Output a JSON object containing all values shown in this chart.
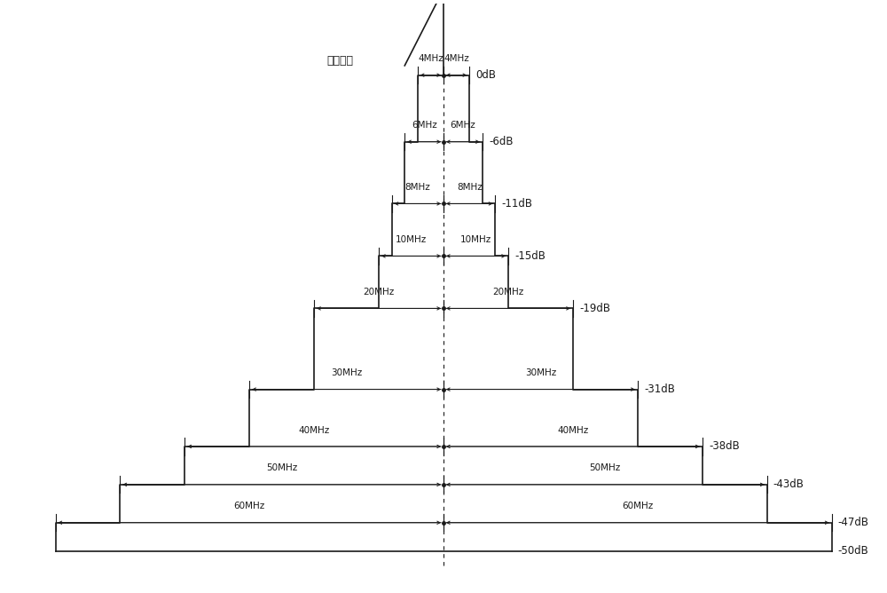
{
  "steps": [
    {
      "bw": 4,
      "db": 0,
      "db_label": "0dB"
    },
    {
      "bw": 6,
      "db": -6,
      "db_label": "-6dB"
    },
    {
      "bw": 8,
      "db": -11,
      "db_label": "-11dB"
    },
    {
      "bw": 10,
      "db": -15,
      "db_label": "-15dB"
    },
    {
      "bw": 20,
      "db": -19,
      "db_label": "-19dB"
    },
    {
      "bw": 30,
      "db": -31,
      "db_label": "-31dB"
    },
    {
      "bw": 40,
      "db": -38,
      "db_label": "-38dB"
    },
    {
      "bw": 50,
      "db": -43,
      "db_label": "-43dB"
    },
    {
      "bw": 60,
      "db": -47,
      "db_label": "-47dB"
    }
  ],
  "bottom_db_label": "-50dB",
  "y_positions": [
    10.0,
    8.6,
    7.3,
    6.2,
    5.1,
    3.4,
    2.2,
    1.4,
    0.6,
    0.0
  ],
  "carrier_label": "载波频率",
  "bg_color": "#ffffff",
  "line_color": "#1a1a1a",
  "fig_width": 10.0,
  "fig_height": 6.68
}
